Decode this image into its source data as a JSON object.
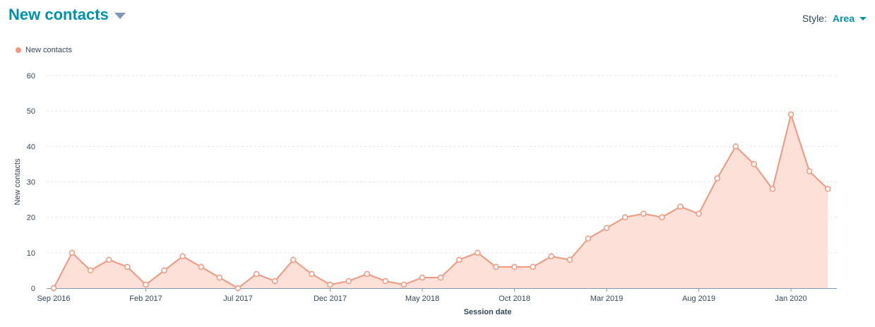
{
  "header": {
    "title": "New contacts",
    "style_label": "Style:",
    "style_value": "Area"
  },
  "chart_data": {
    "type": "area",
    "xlabel": "Session date",
    "ylabel": "New contacts",
    "ylim": [
      0,
      60
    ],
    "yticks": [
      0,
      10,
      20,
      30,
      40,
      50,
      60
    ],
    "grid": true,
    "legend_position": "top-left",
    "x": [
      "Sep 2016",
      "Oct 2016",
      "Nov 2016",
      "Dec 2016",
      "Jan 2017",
      "Feb 2017",
      "Mar 2017",
      "Apr 2017",
      "May 2017",
      "Jun 2017",
      "Jul 2017",
      "Aug 2017",
      "Sep 2017",
      "Oct 2017",
      "Nov 2017",
      "Dec 2017",
      "Jan 2018",
      "Feb 2018",
      "Mar 2018",
      "Apr 2018",
      "May 2018",
      "Jun 2018",
      "Jul 2018",
      "Aug 2018",
      "Sep 2018",
      "Oct 2018",
      "Nov 2018",
      "Dec 2018",
      "Jan 2019",
      "Feb 2019",
      "Mar 2019",
      "Apr 2019",
      "May 2019",
      "Jun 2019",
      "Jul 2019",
      "Aug 2019",
      "Sep 2019",
      "Oct 2019",
      "Nov 2019",
      "Dec 2019",
      "Jan 2020",
      "Feb 2020",
      "Mar 2020"
    ],
    "x_tick_labels": [
      "Sep 2016",
      "Feb 2017",
      "Jul 2017",
      "Dec 2017",
      "May 2018",
      "Oct 2018",
      "Mar 2019",
      "Aug 2019",
      "Jan 2020"
    ],
    "x_tick_indices": [
      0,
      5,
      10,
      15,
      20,
      25,
      30,
      35,
      40
    ],
    "series": [
      {
        "name": "New contacts",
        "color": "#f2977d",
        "fill": "#fde0d8",
        "values": [
          0,
          10,
          5,
          8,
          6,
          1,
          5,
          9,
          6,
          3,
          0,
          4,
          2,
          8,
          4,
          1,
          2,
          4,
          2,
          1,
          3,
          3,
          8,
          10,
          6,
          6,
          6,
          9,
          8,
          14,
          17,
          20,
          21,
          20,
          23,
          21,
          31,
          40,
          35,
          28,
          49,
          33,
          28
        ]
      }
    ]
  }
}
